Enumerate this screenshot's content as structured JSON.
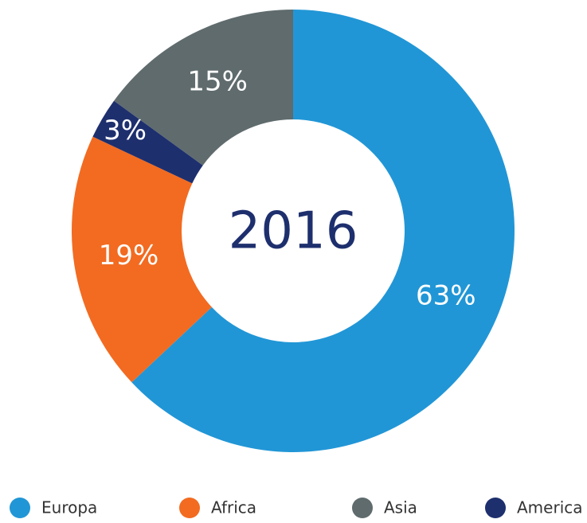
{
  "chart_data": {
    "type": "donut",
    "center_label": "2016",
    "categories": [
      "Europa",
      "Africa",
      "America",
      "Asia"
    ],
    "values": [
      63,
      19,
      3,
      15
    ],
    "value_labels": [
      "63%",
      "19%",
      "3%",
      "15%"
    ],
    "colors": [
      "#2196d6",
      "#f26b21",
      "#1e2f6e",
      "#5f6b6d"
    ]
  }
}
